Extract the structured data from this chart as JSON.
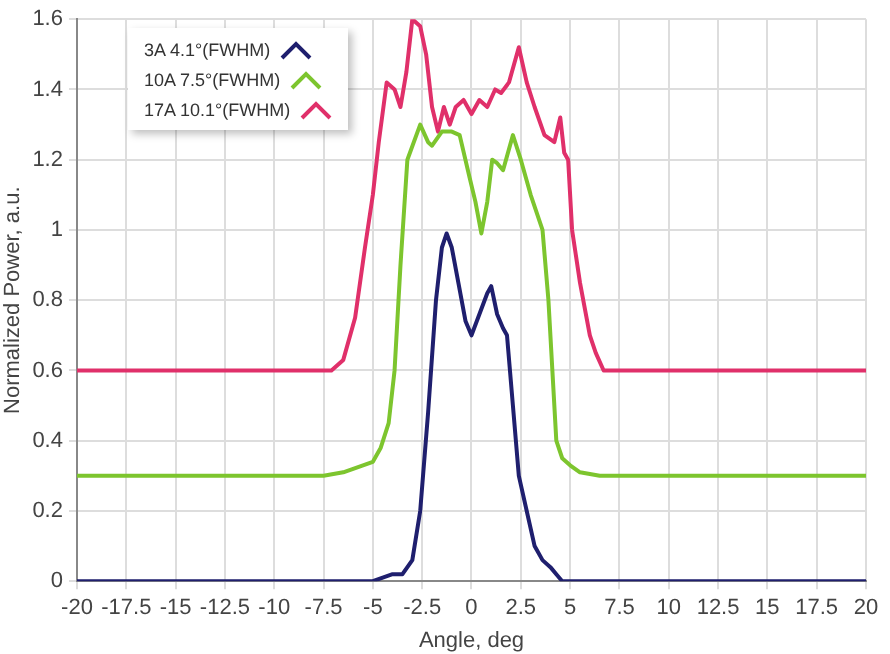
{
  "chart_data": {
    "type": "line",
    "xlabel": "Angle, deg",
    "ylabel": "Normalized Power, a.u.",
    "xlim": [
      -20,
      20
    ],
    "xticks": [
      -20,
      -17.5,
      -15,
      -12.5,
      -10,
      -7.5,
      -5,
      -2.5,
      0,
      2.5,
      5,
      7.5,
      10,
      12.5,
      15,
      17.5,
      20
    ],
    "ylim": [
      0,
      1.6
    ],
    "yticks": [
      0,
      0.2,
      0.4,
      0.6,
      0.8,
      1,
      1.2,
      1.4,
      1.6
    ],
    "grid": true,
    "legend": "top left",
    "marker": "none",
    "line_style": "solid",
    "series": [
      {
        "name": "3A 4.1°(FWHM)",
        "color": "#1f1f6e",
        "x": [
          -20,
          -5,
          -4.5,
          -4,
          -3.5,
          -3,
          -2.6,
          -2.2,
          -1.8,
          -1.5,
          -1.26,
          -1,
          -0.6,
          -0.3,
          0,
          0.4,
          0.8,
          1,
          1.3,
          1.6,
          1.8,
          2.1,
          2.4,
          2.8,
          3.2,
          3.6,
          4,
          4.3,
          4.6,
          20
        ],
        "values": [
          0,
          0,
          0.01,
          0.02,
          0.02,
          0.06,
          0.2,
          0.48,
          0.8,
          0.95,
          0.99,
          0.95,
          0.83,
          0.74,
          0.7,
          0.76,
          0.82,
          0.84,
          0.76,
          0.72,
          0.7,
          0.5,
          0.3,
          0.2,
          0.1,
          0.06,
          0.04,
          0.02,
          0,
          0
        ]
      },
      {
        "name": "10A 7.5°(FWHM)",
        "color": "#7dc52e",
        "x": [
          -20,
          -7.5,
          -6.5,
          -5.5,
          -5,
          -4.6,
          -4.2,
          -3.9,
          -3.6,
          -3.25,
          -2.6,
          -2.2,
          -2,
          -1.5,
          -1,
          -0.6,
          -0.1,
          0.2,
          0.5,
          0.8,
          1.05,
          1.3,
          1.6,
          2.1,
          2.5,
          3,
          3.6,
          3.9,
          4.1,
          4.3,
          4.6,
          5,
          5.5,
          6.5,
          7.5,
          20
        ],
        "values": [
          0.3,
          0.3,
          0.31,
          0.33,
          0.34,
          0.38,
          0.45,
          0.6,
          0.9,
          1.2,
          1.3,
          1.25,
          1.24,
          1.28,
          1.28,
          1.27,
          1.15,
          1.08,
          0.99,
          1.08,
          1.2,
          1.19,
          1.17,
          1.27,
          1.2,
          1.1,
          1.0,
          0.8,
          0.6,
          0.4,
          0.35,
          0.33,
          0.31,
          0.3,
          0.3,
          0.3
        ]
      },
      {
        "name": "17A 10.1°(FWHM)",
        "color": "#e0306a",
        "x": [
          -20,
          -7.1,
          -6.5,
          -5.9,
          -5.4,
          -5,
          -4.7,
          -4.3,
          -3.9,
          -3.6,
          -3.3,
          -3,
          -2.6,
          -2.3,
          -2,
          -1.7,
          -1.4,
          -1.1,
          -0.8,
          -0.4,
          0,
          0.4,
          0.8,
          1.2,
          1.5,
          1.9,
          2.4,
          2.8,
          3.2,
          3.7,
          4.2,
          4.5,
          4.7,
          4.9,
          5.1,
          5.5,
          6,
          6.3,
          6.7,
          20
        ],
        "values": [
          0.6,
          0.6,
          0.63,
          0.75,
          0.95,
          1.1,
          1.25,
          1.42,
          1.4,
          1.35,
          1.45,
          1.6,
          1.58,
          1.5,
          1.35,
          1.28,
          1.35,
          1.3,
          1.35,
          1.37,
          1.33,
          1.37,
          1.35,
          1.4,
          1.39,
          1.42,
          1.52,
          1.42,
          1.35,
          1.27,
          1.25,
          1.32,
          1.22,
          1.2,
          1.0,
          0.85,
          0.7,
          0.65,
          0.6,
          0.6
        ]
      }
    ]
  }
}
